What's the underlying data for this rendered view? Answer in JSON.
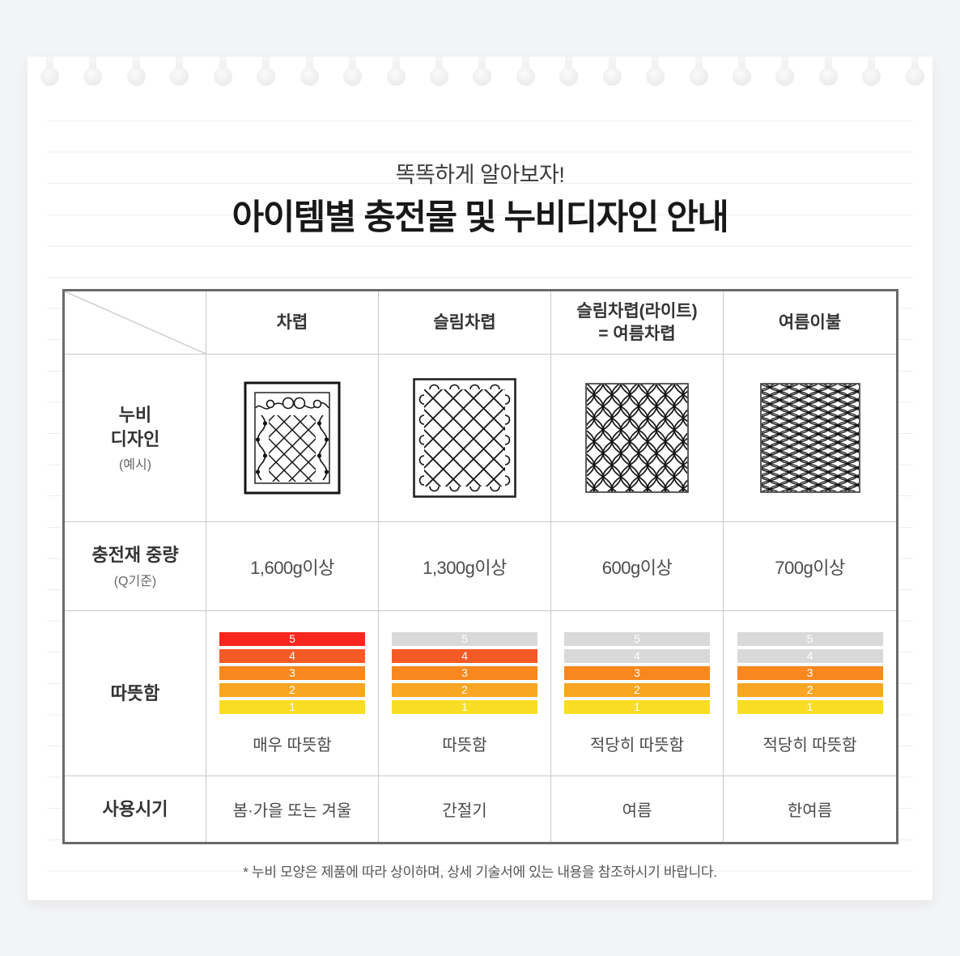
{
  "header": {
    "subtitle": "똑똑하게 알아보자!",
    "title": "아이템별 충전물 및 누비디자인 안내"
  },
  "table": {
    "row_labels": {
      "design_main": "누비\n디자인",
      "design_sub": "(예시)",
      "weight_main": "충전재 중량",
      "weight_sub": "(Q기준)",
      "warmth": "따뜻함",
      "season": "사용시기"
    },
    "warmth_scale": [
      5,
      4,
      3,
      2,
      1
    ],
    "warmth_colors": {
      "5": "#f8271e",
      "4": "#f35a25",
      "3": "#f7871e",
      "2": "#f9a623",
      "1": "#f9dd24",
      "inactive": "#d9d9d9"
    },
    "columns": [
      {
        "name": "차렵",
        "design_icon": "bordered-vine-diamond-quilt",
        "fill_weight": "1,600g이상",
        "warmth_level": 5,
        "warmth_label": "매우 따뜻함",
        "season": "봄·가을 또는 겨울"
      },
      {
        "name": "슬림차렵",
        "design_icon": "looped-diamond-lattice-quilt",
        "fill_weight": "1,300g이상",
        "warmth_level": 4,
        "warmth_label": "따뜻함",
        "season": "간절기"
      },
      {
        "name": "슬림차렵(라이트)\n= 여름차렵",
        "design_icon": "ogee-wave-lattice-quilt",
        "fill_weight": "600g이상",
        "warmth_level": 3,
        "warmth_label": "적당히 따뜻함",
        "season": "여름"
      },
      {
        "name": "여름이불",
        "design_icon": "fine-mesh-lattice-quilt",
        "fill_weight": "700g이상",
        "warmth_level": 3,
        "warmth_label": "적당히 따뜻함",
        "season": "한여름"
      }
    ]
  },
  "footnote": "* 누비 모양은 제품에 따라 상이하며, 상세 기술서에 있는 내용을 참조하시기 바랍니다."
}
